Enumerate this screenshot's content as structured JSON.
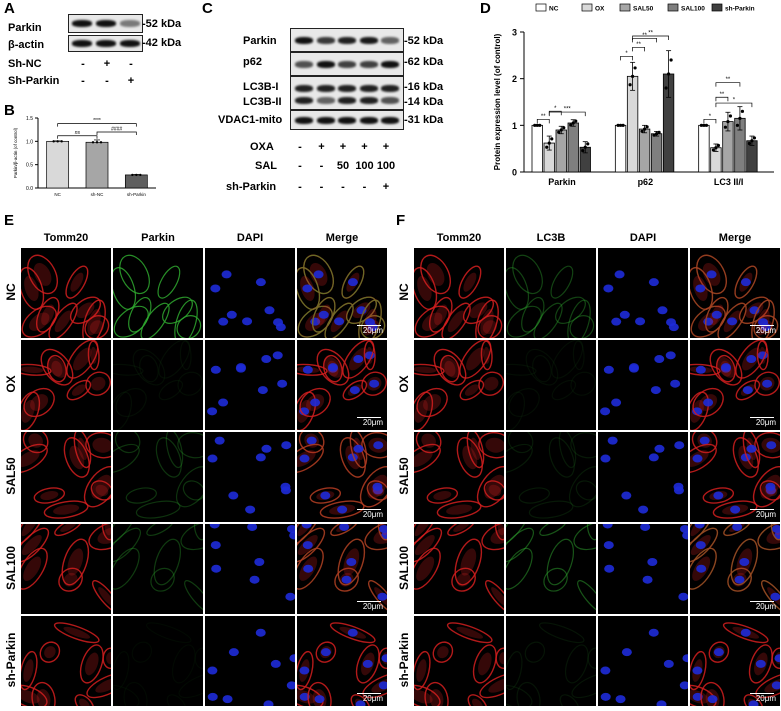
{
  "panelA": {
    "letter": "A",
    "rows": [
      "Parkin",
      "β-actin"
    ],
    "kda": [
      "-52 kDa",
      "-42 kDa"
    ],
    "treatments": [
      {
        "label": "Sh-NC",
        "signs": [
          "-",
          "+",
          "-"
        ]
      },
      {
        "label": "Sh-Parkin",
        "signs": [
          "-",
          "-",
          "+"
        ]
      }
    ],
    "parkin_intensity": [
      1.0,
      1.0,
      0.35
    ],
    "actin_intensity": [
      1.0,
      1.0,
      1.0
    ]
  },
  "panelB": {
    "letter": "B",
    "chart_data": {
      "type": "bar",
      "ylabel": "Parkin/β-actin (of control)",
      "categories": [
        "NC",
        "sh-NC",
        "sh-Parkin"
      ],
      "values": [
        1.0,
        0.98,
        0.28
      ],
      "errors": [
        0.01,
        0.05,
        0.01
      ],
      "ylim": [
        0,
        1.5
      ],
      "yticks": [
        "0.0",
        "0.5",
        "1.0",
        "1.5"
      ],
      "colors": [
        "#d9d9d9",
        "#a6a6a6",
        "#5f5f5f"
      ],
      "significance": [
        {
          "from": 0,
          "to": 1,
          "label": "ns"
        },
        {
          "from": 0,
          "to": 2,
          "label": "****"
        },
        {
          "from": 1,
          "to": 2,
          "label": "####"
        }
      ]
    }
  },
  "panelC": {
    "letter": "C",
    "rows": [
      "Parkin",
      "p62",
      "LC3B-I",
      "LC3B-II",
      "VDAC1-mito"
    ],
    "kda": [
      "-52 kDa",
      "-62 kDa",
      "-16 kDa",
      "-14 kDa",
      "-31 kDa"
    ],
    "treatments": [
      {
        "label": "OXA",
        "signs": [
          "-",
          "+",
          "+",
          "+",
          "+"
        ]
      },
      {
        "label": "SAL",
        "signs": [
          "-",
          "-",
          "50",
          "100",
          "100"
        ]
      },
      {
        "label": "sh-Parkin",
        "signs": [
          "-",
          "-",
          "-",
          "-",
          "+"
        ]
      }
    ],
    "intensities": {
      "parkin": [
        1.0,
        0.75,
        0.9,
        0.95,
        0.5
      ],
      "p62": [
        0.6,
        1.0,
        0.7,
        0.7,
        1.0
      ],
      "lc3i": [
        0.9,
        0.9,
        0.9,
        0.9,
        0.9
      ],
      "lc3ii": [
        0.9,
        0.5,
        0.9,
        0.9,
        0.6
      ],
      "vdac": [
        1.0,
        1.0,
        1.0,
        1.0,
        1.0
      ]
    }
  },
  "panelD": {
    "letter": "D",
    "chart_data": {
      "type": "bar",
      "ylabel": "Protein expression level (of control)",
      "categories": [
        "Parkin",
        "p62",
        "LC3 II/I"
      ],
      "series": [
        {
          "name": "NC",
          "values": [
            1.0,
            1.0,
            1.0
          ],
          "errors": [
            0.0,
            0.0,
            0.0
          ],
          "color": "#ffffff"
        },
        {
          "name": "OX",
          "values": [
            0.62,
            2.05,
            0.52
          ],
          "errors": [
            0.15,
            0.3,
            0.08
          ],
          "color": "#d9d9d9"
        },
        {
          "name": "SAL50",
          "values": [
            0.9,
            0.92,
            1.08
          ],
          "errors": [
            0.08,
            0.08,
            0.2
          ],
          "color": "#a6a6a6"
        },
        {
          "name": "SAL100",
          "values": [
            1.05,
            0.82,
            1.15
          ],
          "errors": [
            0.07,
            0.05,
            0.25
          ],
          "color": "#7f7f7f"
        },
        {
          "name": "sh-Parkin",
          "values": [
            0.53,
            2.1,
            0.67
          ],
          "errors": [
            0.12,
            0.5,
            0.1
          ],
          "color": "#404040"
        }
      ],
      "ylim": [
        0,
        3
      ],
      "yticks": [
        "0",
        "1",
        "2",
        "3"
      ],
      "legend": "top",
      "significance": [
        {
          "group": 0,
          "labels": [
            "**",
            "*",
            "***"
          ]
        },
        {
          "group": 1,
          "labels": [
            "*",
            "**",
            "**",
            "**"
          ]
        },
        {
          "group": 2,
          "labels": [
            "*",
            "**",
            "**",
            "*"
          ]
        }
      ]
    }
  },
  "panelE": {
    "letter": "E",
    "columns": [
      "Tomm20",
      "Parkin",
      "DAPI",
      "Merge"
    ],
    "rows": [
      "NC",
      "OX",
      "SAL50",
      "SAL100",
      "sh-Parkin"
    ],
    "green_levels": [
      0.85,
      0.08,
      0.3,
      0.35,
      0.05
    ],
    "scale": "20μm"
  },
  "panelF": {
    "letter": "F",
    "columns": [
      "Tomm20",
      "LC3B",
      "DAPI",
      "Merge"
    ],
    "rows": [
      "NC",
      "OX",
      "SAL50",
      "SAL100",
      "sh-Parkin"
    ],
    "green_levels": [
      0.4,
      0.08,
      0.15,
      0.5,
      0.12
    ],
    "scale": "20μm"
  },
  "colors": {
    "red": "#d21e1e",
    "green": "#2fa82f",
    "blue": "#1e2bd8"
  }
}
